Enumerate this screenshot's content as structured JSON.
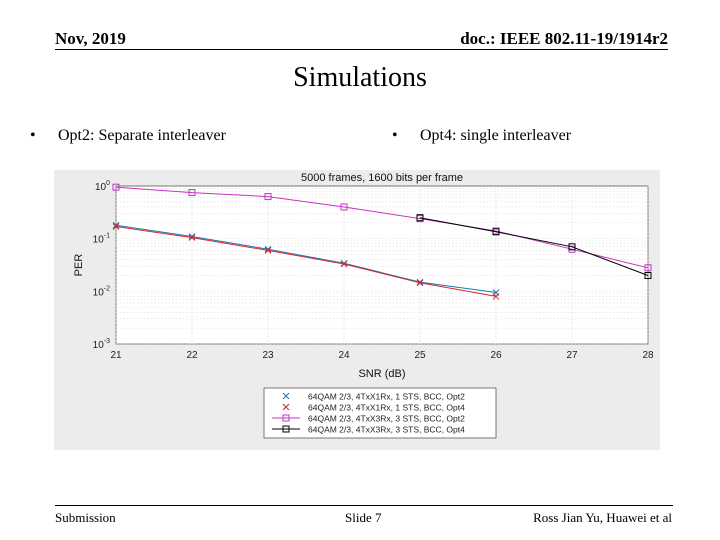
{
  "header": {
    "date": "Nov, 2019",
    "doc": "doc.: IEEE 802.11-19/1914r2"
  },
  "slide_title": "Simulations",
  "bullets": [
    {
      "marker": "•",
      "text": "Opt2: Separate interleaver"
    },
    {
      "marker": "•",
      "text": "Opt4: single interleaver"
    }
  ],
  "chart_data": {
    "type": "line",
    "title": "5000 frames, 1600 bits per frame",
    "xlabel": "SNR (dB)",
    "ylabel": "PER",
    "xscale": "linear",
    "yscale": "log",
    "xlim": [
      21,
      28
    ],
    "ylim": [
      0.001,
      1
    ],
    "grid": true,
    "x_ticks": [
      "21",
      "22",
      "23",
      "24",
      "25",
      "26",
      "27",
      "28"
    ],
    "y_ticks": [
      {
        "value": 1,
        "base": "10",
        "exp": "0"
      },
      {
        "value": 0.1,
        "base": "10",
        "exp": "-1"
      },
      {
        "value": 0.01,
        "base": "10",
        "exp": "-2"
      },
      {
        "value": 0.001,
        "base": "10",
        "exp": "-3"
      }
    ],
    "legend_position": "bottom-center",
    "series": [
      {
        "name": "64QAM 2/3, 4TxX1Rx, 1 STS, BCC, Opt2",
        "color": "#1f77b4",
        "marker": "x",
        "x": [
          21,
          22,
          23,
          24,
          25,
          26
        ],
        "y": [
          0.18,
          0.11,
          0.063,
          0.034,
          0.015,
          0.0095
        ]
      },
      {
        "name": "64QAM 2/3, 4TxX1Rx, 1 STS, BCC, Opt4",
        "color": "#d62728",
        "marker": "x",
        "x": [
          21,
          22,
          23,
          24,
          25,
          26
        ],
        "y": [
          0.17,
          0.105,
          0.06,
          0.033,
          0.0145,
          0.008
        ]
      },
      {
        "name": "64QAM 2/3, 4TxX3Rx, 3 STS, BCC, Opt2",
        "color": "#c832c8",
        "marker": "square",
        "x": [
          21,
          22,
          23,
          24,
          25,
          26,
          27,
          28
        ],
        "y": [
          0.95,
          0.75,
          0.63,
          0.4,
          0.24,
          0.14,
          0.063,
          0.028
        ]
      },
      {
        "name": "64QAM 2/3, 4TxX3Rx, 3 STS, BCC, Opt4",
        "color": "#000000",
        "marker": "square",
        "x": [
          25,
          26,
          27,
          28
        ],
        "y": [
          0.25,
          0.135,
          0.07,
          0.02
        ]
      }
    ]
  },
  "footer": {
    "left": "Submission",
    "center": "Slide 7",
    "right": "Ross Jian Yu, Huawei et al"
  }
}
